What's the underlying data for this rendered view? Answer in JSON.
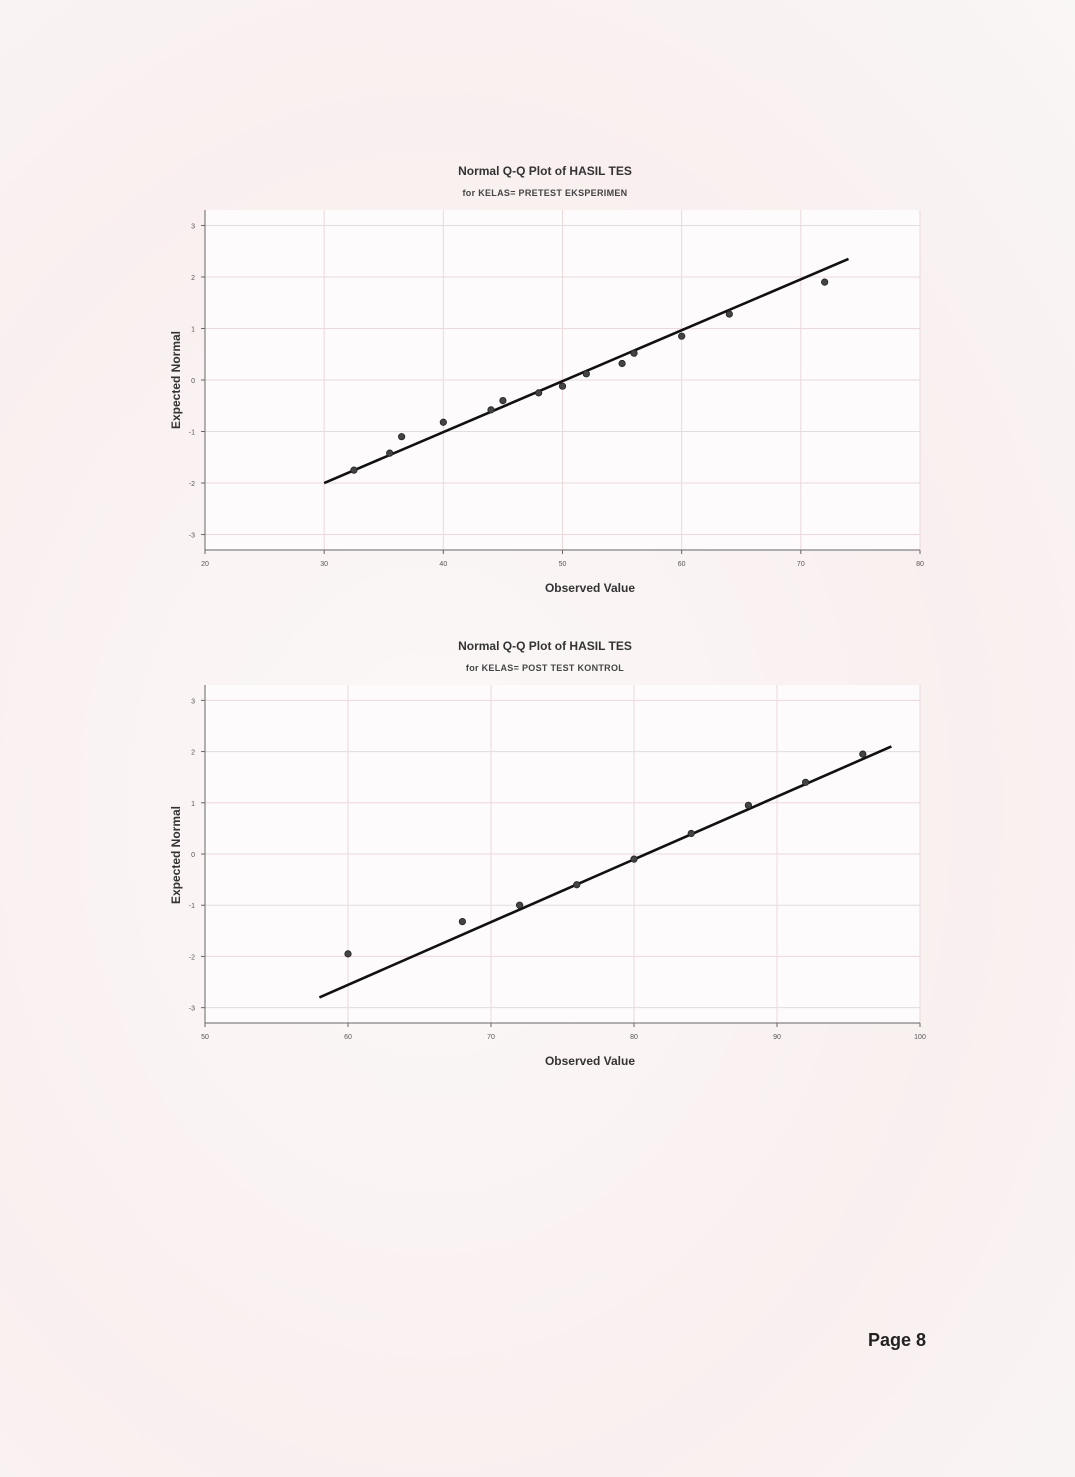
{
  "page": {
    "number_label": "Page 8"
  },
  "chart_data": [
    {
      "type": "scatter",
      "title": "Normal Q-Q Plot of HASIL TES",
      "subtitle": "for KELAS= PRETEST EKSPERIMEN",
      "xlabel": "Observed Value",
      "ylabel": "Expected Normal",
      "xlim": [
        20,
        80
      ],
      "ylim": [
        -3.3,
        3.3
      ],
      "xticks": [
        20,
        30,
        40,
        50,
        60,
        70,
        80
      ],
      "yticks": [
        3,
        2,
        1,
        0,
        -1,
        -2,
        -3
      ],
      "grid": true,
      "legend": "none",
      "reference_line": {
        "x": [
          30,
          74
        ],
        "y": [
          -2.0,
          2.35
        ]
      },
      "points": [
        {
          "x": 32.5,
          "y": -1.75
        },
        {
          "x": 35.5,
          "y": -1.42
        },
        {
          "x": 36.5,
          "y": -1.1
        },
        {
          "x": 40,
          "y": -0.82
        },
        {
          "x": 44,
          "y": -0.58
        },
        {
          "x": 45,
          "y": -0.4
        },
        {
          "x": 48,
          "y": -0.25
        },
        {
          "x": 50,
          "y": -0.12
        },
        {
          "x": 52,
          "y": 0.12
        },
        {
          "x": 55,
          "y": 0.32
        },
        {
          "x": 56,
          "y": 0.52
        },
        {
          "x": 60,
          "y": 0.85
        },
        {
          "x": 64,
          "y": 1.28
        },
        {
          "x": 72,
          "y": 1.9
        }
      ]
    },
    {
      "type": "scatter",
      "title": "Normal Q-Q Plot of HASIL TES",
      "subtitle": "for KELAS= POST TEST KONTROL",
      "xlabel": "Observed Value",
      "ylabel": "Expected Normal",
      "xlim": [
        50,
        100
      ],
      "ylim": [
        -3.3,
        3.3
      ],
      "xticks": [
        50,
        60,
        70,
        80,
        90,
        100
      ],
      "yticks": [
        3,
        2,
        1,
        0,
        -1,
        -2,
        -3
      ],
      "grid": true,
      "legend": "none",
      "reference_line": {
        "x": [
          58,
          98
        ],
        "y": [
          -2.8,
          2.1
        ]
      },
      "points": [
        {
          "x": 60,
          "y": -1.95
        },
        {
          "x": 68,
          "y": -1.32
        },
        {
          "x": 72,
          "y": -1.0
        },
        {
          "x": 76,
          "y": -0.6
        },
        {
          "x": 80,
          "y": -0.1
        },
        {
          "x": 84,
          "y": 0.4
        },
        {
          "x": 88,
          "y": 0.95
        },
        {
          "x": 92,
          "y": 1.4
        },
        {
          "x": 96,
          "y": 1.95
        }
      ]
    }
  ]
}
